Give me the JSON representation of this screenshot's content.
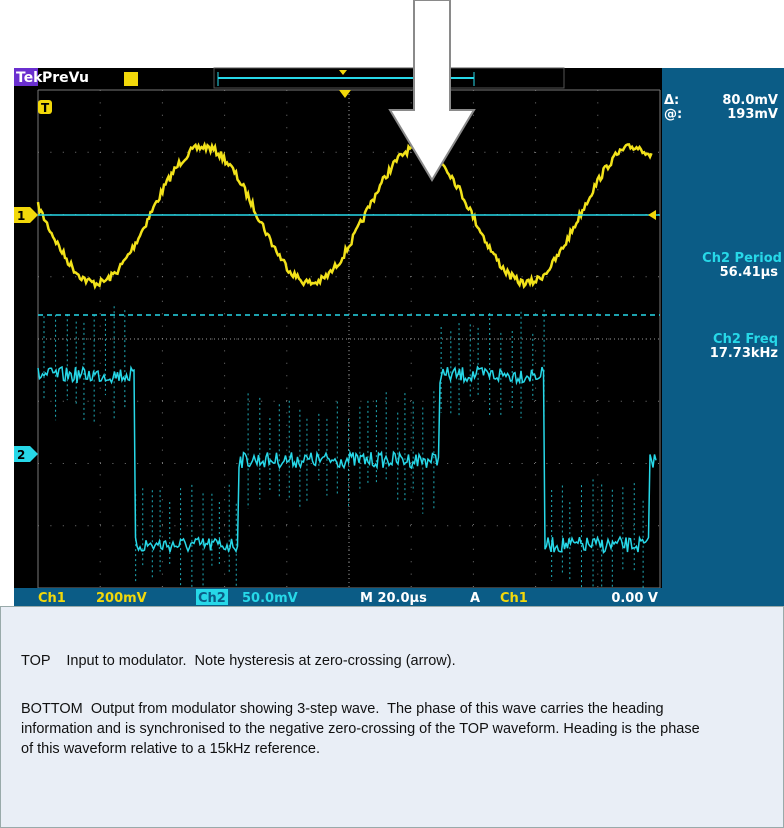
{
  "scope": {
    "brand": "Tek",
    "mode": "PreVu",
    "trigger_marker": "T",
    "ch1_marker": "1",
    "ch2_marker": "2",
    "readouts": [
      {
        "label": "Δ:",
        "value": "80.0mV"
      },
      {
        "label": "@:",
        "value": "193mV"
      }
    ],
    "measurements": [
      {
        "label": "Ch2 Period",
        "value": "56.41µs"
      },
      {
        "label": "Ch2 Freq",
        "value": "17.73kHz"
      }
    ],
    "status_bar": {
      "ch1": "Ch1",
      "ch1_scale": "200mV",
      "ch2": "Ch2",
      "ch2_scale": "50.0mV",
      "timebase": "M 20.0µs",
      "trigger_mode": "A",
      "trigger_source": "Ch1",
      "trigger_level": "0.00 V"
    }
  },
  "caption": {
    "paragraphs": [
      "TOP    Input to modulator.  Note hysteresis at zero-crossing (arrow).",
      "BOTTOM  Output from modulator showing 3-step wave.  The phase of this wave carries the heading information and is synchronised to the negative zero-crossing of the TOP waveform. Heading is the phase of this waveform relative to a 15kHz reference."
    ]
  }
}
